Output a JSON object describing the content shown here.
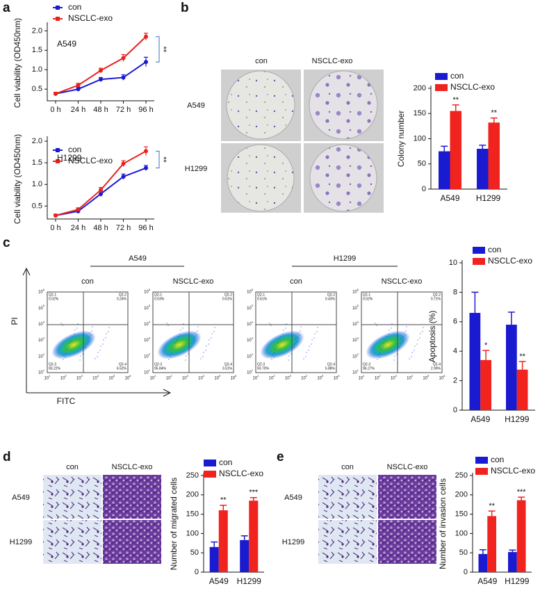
{
  "panel_labels": [
    "a",
    "b",
    "c",
    "d",
    "e"
  ],
  "colony": {
    "columns": [
      "con",
      "NSCLC-exo"
    ],
    "rows": [
      "A549",
      "H1299"
    ]
  },
  "flow": {
    "groups": [
      "A549",
      "H1299"
    ],
    "columns": [
      "con",
      "NSCLC-exo",
      "con",
      "NSCLC-exo"
    ],
    "y_label": "PI",
    "x_label": "FITC",
    "exp_base": "10",
    "exponents": [
      "1",
      "2",
      "3",
      "4",
      "5",
      "6"
    ],
    "quadrants": [
      "Q2-1",
      "Q2-2",
      "Q2-3",
      "Q2-4"
    ],
    "plots": [
      [
        "0.02%",
        "0.24%",
        "93.22%",
        "6.52%"
      ],
      [
        "0.03%",
        "0.61%",
        "95.84%",
        "3.51%"
      ],
      [
        "0.61%",
        "0.43%",
        "93.70%",
        "5.88%"
      ],
      [
        "0.02%",
        "0.71%",
        "96.27%",
        "2.99%"
      ]
    ]
  },
  "migration": {
    "columns": [
      "con",
      "NSCLC-exo"
    ],
    "rows": [
      "A549",
      "H1299"
    ]
  },
  "invasion": {
    "columns": [
      "con",
      "NSCLC-exo"
    ],
    "rows": [
      "A549",
      "H1299"
    ]
  },
  "chart_data": [
    {
      "type": "line",
      "y_label": "Cell viability (OD450nm)",
      "label": "A549",
      "annotation": "**",
      "categories": [
        "0 h",
        "24 h",
        "48 h",
        "72 h",
        "96 h"
      ],
      "series": [
        {
          "name": "con",
          "color": "#1a1ad0",
          "values": [
            0.38,
            0.5,
            0.75,
            0.8,
            1.2
          ],
          "errors": [
            0.04,
            0.05,
            0.05,
            0.07,
            0.12
          ]
        },
        {
          "name": "NSCLC-exo",
          "color": "#e8231f",
          "values": [
            0.38,
            0.6,
            0.98,
            1.3,
            1.85
          ],
          "errors": [
            0.04,
            0.05,
            0.06,
            0.09,
            0.09
          ]
        }
      ],
      "ylim": [
        0.2,
        2.15
      ],
      "yticks": [
        0.5,
        {
          "value": 1,
          "label": "1.0"
        },
        1.5,
        {
          "value": 2,
          "label": "2.0"
        }
      ]
    },
    {
      "type": "line",
      "y_label": "Cell viability (OD450nm)",
      "label": "H1299",
      "annotation": "**",
      "categories": [
        "0 h",
        "24 h",
        "48 h",
        "72 h",
        "96 h"
      ],
      "series": [
        {
          "name": "con",
          "color": "#1a1ad0",
          "values": [
            0.28,
            0.38,
            0.78,
            1.18,
            1.38
          ],
          "errors": [
            0.03,
            0.05,
            0.06,
            0.06,
            0.06
          ]
        },
        {
          "name": "NSCLC-exo",
          "color": "#e8231f",
          "values": [
            0.28,
            0.42,
            0.87,
            1.48,
            1.77
          ],
          "errors": [
            0.03,
            0.04,
            0.06,
            0.07,
            0.1
          ]
        }
      ],
      "ylim": [
        0.2,
        2.05
      ],
      "yticks": [
        0.5,
        {
          "value": 1,
          "label": "1.0"
        },
        1.5,
        {
          "value": 2,
          "label": "2.0"
        }
      ]
    },
    {
      "type": "bar",
      "y_label": "Colony number",
      "categories": [
        "A549",
        "H1299"
      ],
      "significance": [
        "**",
        "**"
      ],
      "series": [
        {
          "name": "con",
          "color": "#1a1ad0",
          "values": [
            75,
            80
          ],
          "errors": [
            10,
            7
          ]
        },
        {
          "name": "NSCLC-exo",
          "color": "#f0231f",
          "values": [
            155,
            132
          ],
          "errors": [
            12,
            9
          ]
        }
      ],
      "ylim": [
        0,
        200
      ],
      "yticks": [
        0,
        50,
        100,
        150,
        200
      ]
    },
    {
      "type": "bar",
      "y_label": "Apoptosis (%)",
      "categories": [
        "A549",
        "H1299"
      ],
      "significance": [
        "*",
        "**"
      ],
      "series": [
        {
          "name": "con",
          "color": "#1a1ad0",
          "values": [
            6.6,
            5.8
          ],
          "errors": [
            1.4,
            0.85
          ]
        },
        {
          "name": "NSCLC-exo",
          "color": "#f0231f",
          "values": [
            3.4,
            2.75
          ],
          "errors": [
            0.65,
            0.55
          ]
        }
      ],
      "ylim": [
        0,
        10
      ],
      "yticks": [
        0,
        2,
        4,
        6,
        8,
        10
      ]
    },
    {
      "type": "bar",
      "y_label": "Number of migrated cells",
      "categories": [
        "A549",
        "H1299"
      ],
      "significance": [
        "**",
        "***"
      ],
      "series": [
        {
          "name": "con",
          "color": "#1a1ad0",
          "values": [
            65,
            83
          ],
          "errors": [
            13,
            11
          ]
        },
        {
          "name": "NSCLC-exo",
          "color": "#f0231f",
          "values": [
            160,
            185
          ],
          "errors": [
            13,
            8
          ]
        }
      ],
      "ylim": [
        0,
        250
      ],
      "yticks": [
        0,
        50,
        100,
        150,
        200,
        250
      ]
    },
    {
      "type": "bar",
      "y_label": "Number of invasion cells",
      "categories": [
        "A549",
        "H1299"
      ],
      "significance": [
        "**",
        "***"
      ],
      "series": [
        {
          "name": "con",
          "color": "#1a1ad0",
          "values": [
            47,
            52
          ],
          "errors": [
            11,
            5
          ]
        },
        {
          "name": "NSCLC-exo",
          "color": "#f0231f",
          "values": [
            145,
            186
          ],
          "errors": [
            13,
            8
          ]
        }
      ],
      "ylim": [
        0,
        250
      ],
      "yticks": [
        0,
        50,
        100,
        150,
        200,
        250
      ]
    }
  ]
}
